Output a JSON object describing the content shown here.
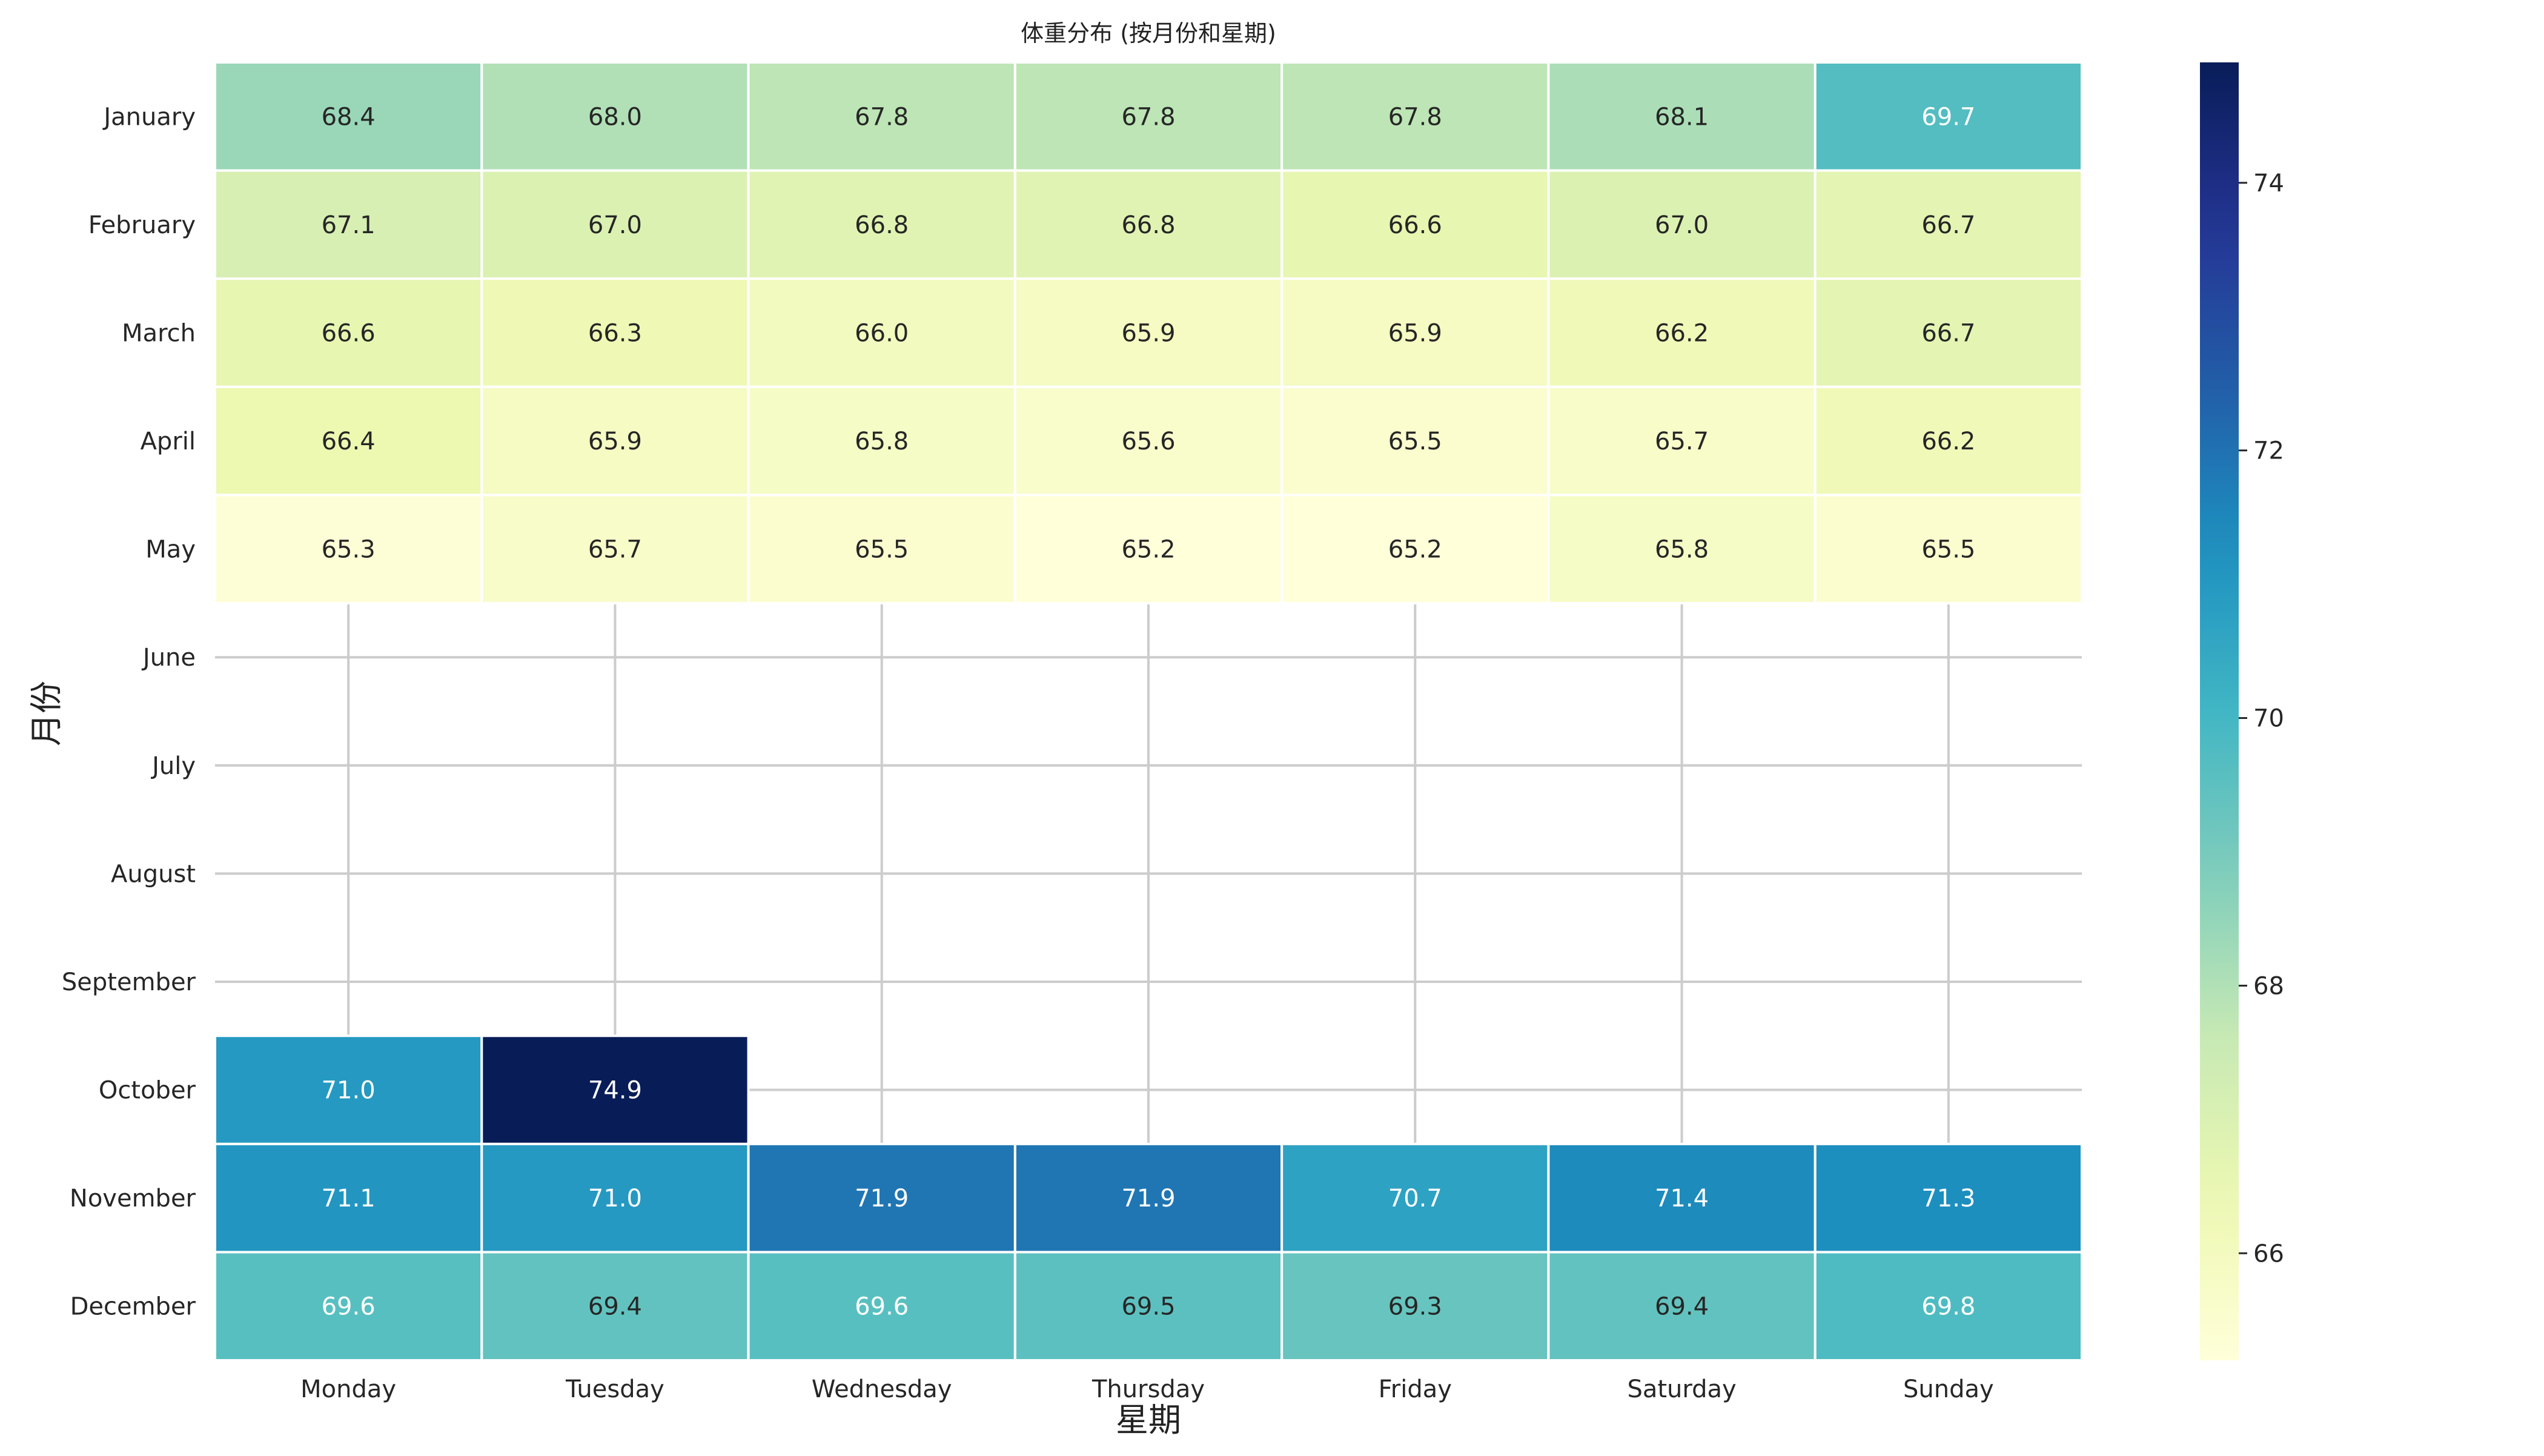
{
  "chart_data": {
    "type": "heatmap",
    "title": "体重分布 (按月份和星期)",
    "xlabel": "星期",
    "ylabel": "月份",
    "x_categories": [
      "Monday",
      "Tuesday",
      "Wednesday",
      "Thursday",
      "Friday",
      "Saturday",
      "Sunday"
    ],
    "y_categories": [
      "January",
      "February",
      "March",
      "April",
      "May",
      "June",
      "July",
      "August",
      "September",
      "October",
      "November",
      "December"
    ],
    "values": [
      [
        68.4,
        68.0,
        67.8,
        67.8,
        67.8,
        68.1,
        69.7
      ],
      [
        67.1,
        67.0,
        66.8,
        66.8,
        66.6,
        67.0,
        66.7
      ],
      [
        66.6,
        66.3,
        66.0,
        65.9,
        65.9,
        66.2,
        66.7
      ],
      [
        66.4,
        65.9,
        65.8,
        65.6,
        65.5,
        65.7,
        66.2
      ],
      [
        65.3,
        65.7,
        65.5,
        65.2,
        65.2,
        65.8,
        65.5
      ],
      [
        null,
        null,
        null,
        null,
        null,
        null,
        null
      ],
      [
        null,
        null,
        null,
        null,
        null,
        null,
        null
      ],
      [
        null,
        null,
        null,
        null,
        null,
        null,
        null
      ],
      [
        null,
        null,
        null,
        null,
        null,
        null,
        null
      ],
      [
        71.0,
        74.9,
        null,
        null,
        null,
        null,
        null
      ],
      [
        71.1,
        71.0,
        71.9,
        71.9,
        70.7,
        71.4,
        71.3
      ],
      [
        69.6,
        69.4,
        69.6,
        69.5,
        69.3,
        69.4,
        69.8
      ]
    ],
    "colormap": "YlGnBu",
    "colorbar": {
      "min": 65.2,
      "max": 74.9,
      "ticks": [
        66,
        68,
        70,
        72,
        74
      ]
    },
    "grid": true
  }
}
